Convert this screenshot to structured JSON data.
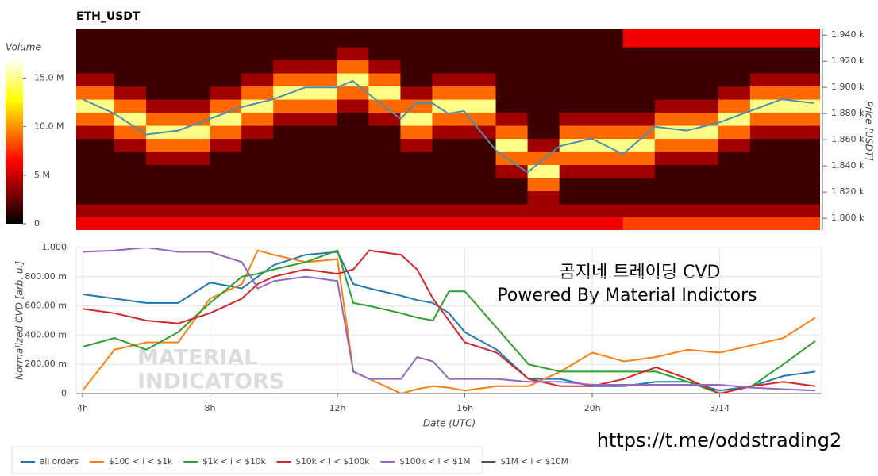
{
  "chart_data": [
    {
      "type": "heatmap",
      "title": "ETH_USDT",
      "y_label": "Price [USDT]",
      "colorbar_label": "Volume",
      "colormap": "hot",
      "xlim": [
        3.8,
        27.2
      ],
      "ylim": [
        1791,
        1945
      ],
      "xbins": [
        3.8,
        5,
        6,
        7,
        8,
        9,
        10,
        11,
        12,
        13,
        14,
        15,
        16,
        17,
        18,
        19,
        20,
        21,
        22,
        23,
        24,
        25,
        26,
        27.2
      ],
      "ybins": [
        1791,
        1801,
        1811,
        1821,
        1831,
        1841,
        1851,
        1861,
        1871,
        1881,
        1891,
        1901,
        1911,
        1921,
        1931,
        1945
      ],
      "zlim": [
        0,
        17000000
      ],
      "zticks": [
        0,
        {
          "value": 5000000,
          "label": "5 M"
        },
        {
          "value": 10000000,
          "label": "10.0 M"
        },
        {
          "value": 15000000,
          "label": "15.0 M"
        }
      ],
      "yticks": [
        {
          "value": 1800,
          "label": "1.800 k"
        },
        {
          "value": 1820,
          "label": "1.820 k"
        },
        {
          "value": 1840,
          "label": "1.840 k"
        },
        {
          "value": 1860,
          "label": "1.860 k"
        },
        {
          "value": 1880,
          "label": "1.880 k"
        },
        {
          "value": 1900,
          "label": "1.900 k"
        },
        {
          "value": 1920,
          "label": "1.920 k"
        },
        {
          "value": 1940,
          "label": "1.940 k"
        }
      ],
      "z": [
        [
          6000000.0,
          6000000.0,
          6000000.0,
          6000000.0,
          6000000.0,
          6000000.0,
          6000000.0,
          6000000.0,
          6000000.0,
          6000000.0,
          6000000.0,
          6000000.0,
          6000000.0,
          6000000.0,
          6000000.0,
          6000000.0,
          6000000.0,
          8000000.0,
          8000000.0,
          8000000.0,
          8000000.0,
          8000000.0,
          8000000.0
        ],
        [
          4000000.0,
          4000000.0,
          4000000.0,
          4000000.0,
          4000000.0,
          4000000.0,
          4000000.0,
          4000000.0,
          4000000.0,
          4000000.0,
          4000000.0,
          4000000.0,
          4000000.0,
          4000000.0,
          4000000.0,
          4000000.0,
          4000000.0,
          4000000.0,
          4000000.0,
          4000000.0,
          4000000.0,
          4000000.0,
          4000000.0
        ],
        [
          1500000.0,
          1500000.0,
          1500000.0,
          1500000.0,
          1500000.0,
          1500000.0,
          1500000.0,
          1500000.0,
          1500000.0,
          1500000.0,
          1500000.0,
          1500000.0,
          1500000.0,
          1500000.0,
          4000000.0,
          1500000.0,
          1500000.0,
          1500000.0,
          1500000.0,
          1500000.0,
          1500000.0,
          1500000.0,
          1500000.0
        ],
        [
          1500000.0,
          1500000.0,
          1500000.0,
          1500000.0,
          1500000.0,
          1500000.0,
          1500000.0,
          1500000.0,
          1500000.0,
          1500000.0,
          1500000.0,
          1500000.0,
          1500000.0,
          1500000.0,
          9000000.0,
          1500000.0,
          1500000.0,
          1500000.0,
          1500000.0,
          1500000.0,
          1500000.0,
          1500000.0,
          1500000.0
        ],
        [
          1500000.0,
          1500000.0,
          1500000.0,
          1500000.0,
          1500000.0,
          1500000.0,
          1500000.0,
          1500000.0,
          1500000.0,
          1500000.0,
          1500000.0,
          1500000.0,
          1500000.0,
          4000000.0,
          15000000.0,
          4000000.0,
          4000000.0,
          4000000.0,
          1500000.0,
          1500000.0,
          1500000.0,
          1500000.0,
          1500000.0
        ],
        [
          1500000.0,
          1500000.0,
          4000000.0,
          4000000.0,
          1500000.0,
          1500000.0,
          1500000.0,
          1500000.0,
          1500000.0,
          1500000.0,
          1500000.0,
          1500000.0,
          1500000.0,
          9000000.0,
          9000000.0,
          9000000.0,
          9000000.0,
          9000000.0,
          4000000.0,
          4000000.0,
          1500000.0,
          1500000.0,
          1500000.0
        ],
        [
          1500000.0,
          4000000.0,
          9000000.0,
          9000000.0,
          4000000.0,
          1500000.0,
          1500000.0,
          1500000.0,
          1500000.0,
          1500000.0,
          4000000.0,
          1500000.0,
          1500000.0,
          15000000.0,
          4000000.0,
          15000000.0,
          15000000.0,
          15000000.0,
          9000000.0,
          9000000.0,
          4000000.0,
          1500000.0,
          1500000.0
        ],
        [
          4000000.0,
          9000000.0,
          15000000.0,
          15000000.0,
          9000000.0,
          4000000.0,
          1500000.0,
          1500000.0,
          1500000.0,
          1500000.0,
          9000000.0,
          4000000.0,
          4000000.0,
          9000000.0,
          1500000.0,
          9000000.0,
          9000000.0,
          9000000.0,
          15000000.0,
          15000000.0,
          9000000.0,
          4000000.0,
          4000000.0
        ],
        [
          9000000.0,
          15000000.0,
          9000000.0,
          9000000.0,
          15000000.0,
          9000000.0,
          4000000.0,
          4000000.0,
          1500000.0,
          4000000.0,
          15000000.0,
          9000000.0,
          9000000.0,
          4000000.0,
          1500000.0,
          4000000.0,
          4000000.0,
          4000000.0,
          9000000.0,
          9000000.0,
          15000000.0,
          9000000.0,
          9000000.0
        ],
        [
          15000000.0,
          9000000.0,
          4000000.0,
          4000000.0,
          9000000.0,
          15000000.0,
          9000000.0,
          9000000.0,
          4000000.0,
          9000000.0,
          9000000.0,
          15000000.0,
          15000000.0,
          1500000.0,
          1500000.0,
          1500000.0,
          1500000.0,
          1500000.0,
          4000000.0,
          4000000.0,
          9000000.0,
          15000000.0,
          15000000.0
        ],
        [
          9000000.0,
          4000000.0,
          1500000.0,
          1500000.0,
          4000000.0,
          9000000.0,
          15000000.0,
          15000000.0,
          9000000.0,
          15000000.0,
          4000000.0,
          9000000.0,
          9000000.0,
          1500000.0,
          1500000.0,
          1500000.0,
          1500000.0,
          1500000.0,
          1500000.0,
          1500000.0,
          4000000.0,
          9000000.0,
          9000000.0
        ],
        [
          4000000.0,
          1500000.0,
          1500000.0,
          1500000.0,
          1500000.0,
          4000000.0,
          9000000.0,
          9000000.0,
          15000000.0,
          9000000.0,
          1500000.0,
          4000000.0,
          4000000.0,
          1500000.0,
          1500000.0,
          1500000.0,
          1500000.0,
          1500000.0,
          1500000.0,
          1500000.0,
          1500000.0,
          4000000.0,
          4000000.0
        ],
        [
          1500000.0,
          1500000.0,
          1500000.0,
          1500000.0,
          1500000.0,
          1500000.0,
          4000000.0,
          4000000.0,
          9000000.0,
          4000000.0,
          1500000.0,
          1500000.0,
          1500000.0,
          1500000.0,
          1500000.0,
          1500000.0,
          1500000.0,
          1500000.0,
          1500000.0,
          1500000.0,
          1500000.0,
          1500000.0,
          1500000.0
        ],
        [
          1500000.0,
          1500000.0,
          1500000.0,
          1500000.0,
          1500000.0,
          1500000.0,
          1500000.0,
          1500000.0,
          4000000.0,
          1500000.0,
          1500000.0,
          1500000.0,
          1500000.0,
          1500000.0,
          1500000.0,
          1500000.0,
          1500000.0,
          1500000.0,
          1500000.0,
          1500000.0,
          1500000.0,
          1500000.0,
          1500000.0
        ],
        [
          1500000.0,
          1500000.0,
          1500000.0,
          1500000.0,
          1500000.0,
          1500000.0,
          1500000.0,
          1500000.0,
          1500000.0,
          1500000.0,
          1500000.0,
          1500000.0,
          1500000.0,
          1500000.0,
          1500000.0,
          1500000.0,
          1500000.0,
          6000000.0,
          6000000.0,
          6000000.0,
          6000000.0,
          6000000.0,
          6000000.0
        ]
      ],
      "line": {
        "color": "#4a8fb0",
        "x": [
          4,
          5,
          6,
          7,
          8,
          9,
          9.5,
          10,
          11,
          12,
          12.5,
          13,
          14,
          14.5,
          15,
          15.5,
          16,
          17,
          18,
          19,
          20,
          21,
          22,
          23,
          24,
          25,
          26,
          27
        ],
        "values": [
          1891,
          1880,
          1864,
          1867,
          1876,
          1885,
          1888,
          1891,
          1900,
          1900,
          1905,
          1895,
          1876,
          1888,
          1888,
          1880,
          1882,
          1852,
          1835,
          1855,
          1861,
          1849,
          1870,
          1867,
          1873,
          1882,
          1891,
          1888
        ]
      }
    },
    {
      "type": "line",
      "x_label": "Date (UTC)",
      "y_label": "Normalized CVD [arb. u.]",
      "grid": true,
      "legend": "bottom-left",
      "xlim": [
        3.8,
        27.2
      ],
      "ylim": [
        0,
        1
      ],
      "xticks": [
        {
          "value": 4,
          "label": "4h"
        },
        {
          "value": 8,
          "label": "8h"
        },
        {
          "value": 12,
          "label": "12h"
        },
        {
          "value": 16,
          "label": "16h"
        },
        {
          "value": 20,
          "label": "20h"
        },
        {
          "value": 24,
          "label": "3/14"
        }
      ],
      "yticks": [
        0,
        {
          "value": 0.2,
          "label": "200.00 m"
        },
        {
          "value": 0.4,
          "label": "400.00 m"
        },
        {
          "value": 0.6,
          "label": "600.00 m"
        },
        {
          "value": 0.8,
          "label": "800.00 m"
        },
        {
          "value": 1,
          "label": "1.000"
        }
      ],
      "annotations": [
        "곰지네 트레이딩 CVD",
        "Powered By Material Indictors",
        "https://t.me/oddstrading2"
      ],
      "watermark": [
        "MATERIAL",
        "INDICATORS"
      ],
      "x": [
        4,
        5,
        6,
        7,
        8,
        9,
        9.5,
        10,
        11,
        12,
        12.5,
        13,
        14,
        14.5,
        15,
        15.5,
        16,
        17,
        18,
        19,
        20,
        21,
        22,
        23,
        24,
        25,
        26,
        27
      ],
      "series": [
        {
          "name": "all orders",
          "color": "#1f77b4",
          "values": [
            0.68,
            0.65,
            0.62,
            0.62,
            0.76,
            0.72,
            0.8,
            0.88,
            0.95,
            0.97,
            0.75,
            0.72,
            0.67,
            0.64,
            0.62,
            0.55,
            0.42,
            0.3,
            0.1,
            0.1,
            0.05,
            0.05,
            0.08,
            0.08,
            0.02,
            0.05,
            0.12,
            0.15
          ]
        },
        {
          "name": "$100 < i < $1k",
          "color": "#ff7f0e",
          "values": [
            0.02,
            0.3,
            0.35,
            0.35,
            0.65,
            0.75,
            0.98,
            0.95,
            0.9,
            0.92,
            0.15,
            0.1,
            0,
            0.03,
            0.05,
            0.04,
            0.02,
            0.05,
            0.05,
            0.15,
            0.28,
            0.22,
            0.25,
            0.3,
            0.28,
            0.33,
            0.38,
            0.52
          ]
        },
        {
          "name": "$1k < i < $10k",
          "color": "#2ca02c",
          "values": [
            0.32,
            0.38,
            0.3,
            0.42,
            0.62,
            0.8,
            0.82,
            0.85,
            0.9,
            0.98,
            0.62,
            0.6,
            0.55,
            0.52,
            0.5,
            0.7,
            0.7,
            0.45,
            0.2,
            0.15,
            0.15,
            0.15,
            0.15,
            0.08,
            0,
            0.05,
            0.2,
            0.36
          ]
        },
        {
          "name": "$10k < i < $100k",
          "color": "#d62728",
          "values": [
            0.58,
            0.55,
            0.5,
            0.48,
            0.55,
            0.65,
            0.75,
            0.8,
            0.85,
            0.82,
            0.85,
            0.98,
            0.95,
            0.85,
            0.65,
            0.5,
            0.35,
            0.28,
            0.1,
            0.05,
            0.05,
            0.1,
            0.18,
            0.1,
            0,
            0.05,
            0.08,
            0.05
          ]
        },
        {
          "name": "$100k < i < $1M",
          "color": "#9467bd",
          "values": [
            0.97,
            0.98,
            1,
            0.97,
            0.97,
            0.9,
            0.72,
            0.77,
            0.8,
            0.77,
            0.15,
            0.1,
            0.1,
            0.25,
            0.22,
            0.1,
            0.1,
            0.1,
            0.08,
            0.08,
            0.06,
            0.06,
            0.06,
            0.06,
            0.06,
            0.04,
            0.03,
            0.02
          ]
        },
        {
          "name": "$1M < i < $10M",
          "color": "#5d4e4e",
          "values": [
            null,
            null,
            null,
            null,
            null,
            null,
            null,
            null,
            null,
            null,
            null,
            null,
            null,
            null,
            null,
            null,
            null,
            null,
            null,
            null,
            null,
            null,
            null,
            null,
            null,
            null,
            null,
            null
          ]
        }
      ]
    }
  ]
}
